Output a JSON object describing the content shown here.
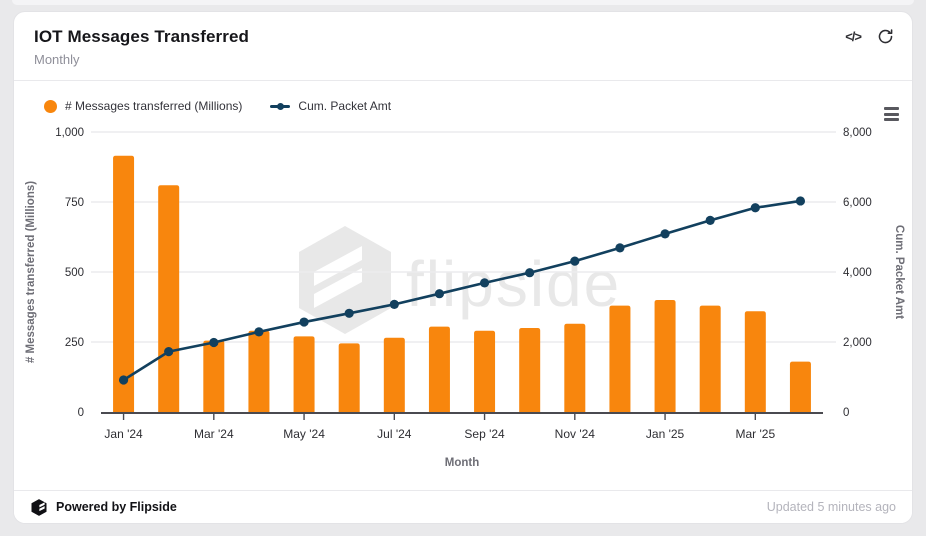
{
  "card": {
    "header": {
      "title": "IOT Messages Transferred",
      "subtitle": "Monthly",
      "code_icon_glyph": "</>"
    },
    "legend": [
      {
        "label": "# Messages transferred (Millions)",
        "color": "#F8860D",
        "marker": "circle"
      },
      {
        "label": "Cum. Packet Amt",
        "color": "#12405E",
        "marker": "line-circle"
      }
    ],
    "footer": {
      "powered_by": "Powered by Flipside",
      "updated": "Updated 5 minutes ago"
    }
  },
  "watermark": {
    "text": "flipside",
    "color": "#e8e8e8"
  },
  "colors": {
    "bar": "#F8860D",
    "line": "#12405E",
    "grid": "#ececee",
    "axis": "#4a4a50",
    "tick_label": "#2e2e33",
    "axis_title": "#6e6e76"
  },
  "chart_data": {
    "type": "combo",
    "categories": [
      "Jan '24",
      "Feb '24",
      "Mar '24",
      "Apr '24",
      "May '24",
      "Jun '24",
      "Jul '24",
      "Aug '24",
      "Sep '24",
      "Oct '24",
      "Nov '24",
      "Dec '24",
      "Jan '25",
      "Feb '25",
      "Mar '25",
      "Apr '25"
    ],
    "series": [
      {
        "name": "# Messages transferred (Millions)",
        "type": "bar",
        "axis": "left",
        "color": "#F8860D",
        "values": [
          915,
          810,
          255,
          290,
          270,
          245,
          265,
          305,
          290,
          300,
          315,
          380,
          400,
          380,
          360,
          180
        ]
      },
      {
        "name": "Cum. Packet Amt",
        "type": "line",
        "axis": "right",
        "color": "#12405E",
        "values": [
          915,
          1725,
          1985,
          2290,
          2570,
          2820,
          3075,
          3380,
          3690,
          3980,
          4310,
          4690,
          5090,
          5475,
          5835,
          6030
        ]
      }
    ],
    "xlabel": "Month",
    "x_tick_labels": [
      "Jan '24",
      "Mar '24",
      "May '24",
      "Jul '24",
      "Sep '24",
      "Nov '24",
      "Jan '25",
      "Mar '25"
    ],
    "x_tick_indices": [
      0,
      2,
      4,
      6,
      8,
      10,
      12,
      14
    ],
    "left_axis": {
      "title": "# Messages transferred (Millions)",
      "range": [
        0,
        1000
      ],
      "ticks": [
        0,
        250,
        500,
        750,
        1000
      ],
      "tick_labels": [
        "0",
        "250",
        "500",
        "750",
        "1,000"
      ]
    },
    "right_axis": {
      "title": "Cum. Packet Amt",
      "range": [
        0,
        8000
      ],
      "ticks": [
        0,
        2000,
        4000,
        6000,
        8000
      ],
      "tick_labels": [
        "0",
        "2,000",
        "4,000",
        "6,000",
        "8,000"
      ]
    },
    "grid": "horizontal",
    "legend_position": "top-left"
  }
}
